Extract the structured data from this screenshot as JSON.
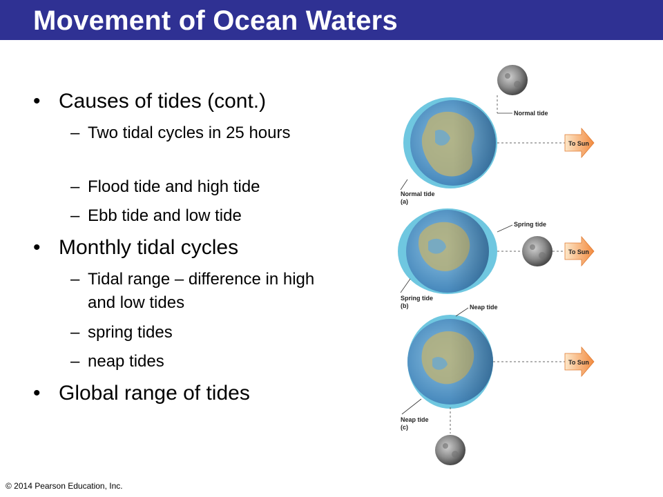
{
  "slide": {
    "title": "Movement of Ocean Waters",
    "copyright": "© 2014 Pearson Education, Inc.",
    "bullet_glyph": "•",
    "dash_glyph": "–",
    "bullets": [
      {
        "text": "Causes of tides (cont.)",
        "subs": [
          "Two tidal cycles in 25 hours",
          "Flood tide and high tide",
          "Ebb tide and low tide"
        ]
      },
      {
        "text": "Monthly tidal cycles",
        "subs": [
          "Tidal range – difference in high and low tides",
          "spring tides",
          "neap tides"
        ]
      },
      {
        "text": "Global range of tides",
        "subs": []
      }
    ]
  },
  "figure": {
    "panels": [
      {
        "label_top": "Normal tide",
        "label_bottom": "Normal tide",
        "panel_letter": "(a)",
        "sun_label": "To Sun"
      },
      {
        "label_top": "Spring tide",
        "label_bottom": "Spring tide",
        "panel_letter": "(b)",
        "sun_label": "To Sun"
      },
      {
        "label_top": "Neap tide",
        "label_bottom": "Neap tide",
        "panel_letter": "(c)",
        "sun_label": "To Sun"
      }
    ],
    "colors": {
      "title_bar": "#2f3193",
      "tidal_bulge": "#6fc7e0",
      "ocean": "#6aa8d0",
      "land": "#b7b27a",
      "arrow": "#f49b5a"
    }
  }
}
